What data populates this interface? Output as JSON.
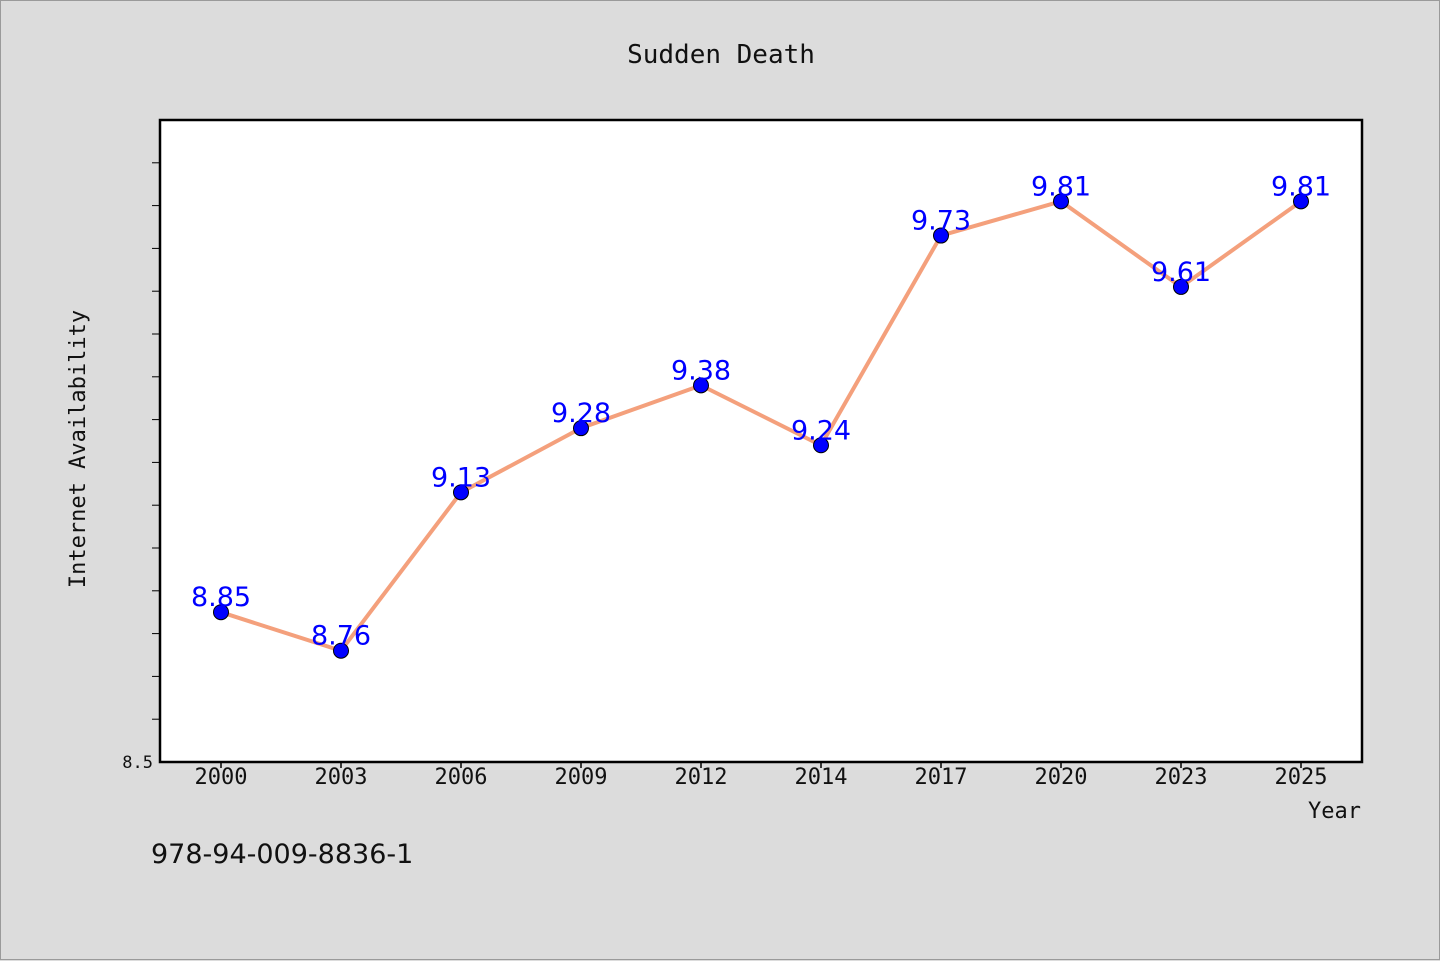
{
  "chart_data": {
    "type": "line",
    "title": "Sudden Death",
    "xlabel": "Year",
    "ylabel": "Internet Availability",
    "categories": [
      "2000",
      "2003",
      "2006",
      "2009",
      "2012",
      "2014",
      "2017",
      "2020",
      "2023",
      "2025"
    ],
    "series": [
      {
        "values": [
          8.85,
          8.76,
          9.13,
          9.28,
          9.38,
          9.24,
          9.73,
          9.81,
          9.61,
          9.81
        ],
        "data_labels": [
          "8.85",
          "8.76",
          "9.13",
          "9.28",
          "9.38",
          "9.24",
          "9.73",
          "9.81",
          "9.61",
          "9.81"
        ]
      }
    ],
    "ylim": [
      8.5,
      10.0
    ],
    "y_tick_label_shown": "8.5",
    "grid": false,
    "legend": "none",
    "colors": {
      "line": "#f4a07c",
      "marker": "#0000ff",
      "label": "#0000ff",
      "background": "#dcdcdc",
      "plot_bg": "#ffffff"
    }
  },
  "footer": {
    "note": "978-94-009-8836-1"
  }
}
